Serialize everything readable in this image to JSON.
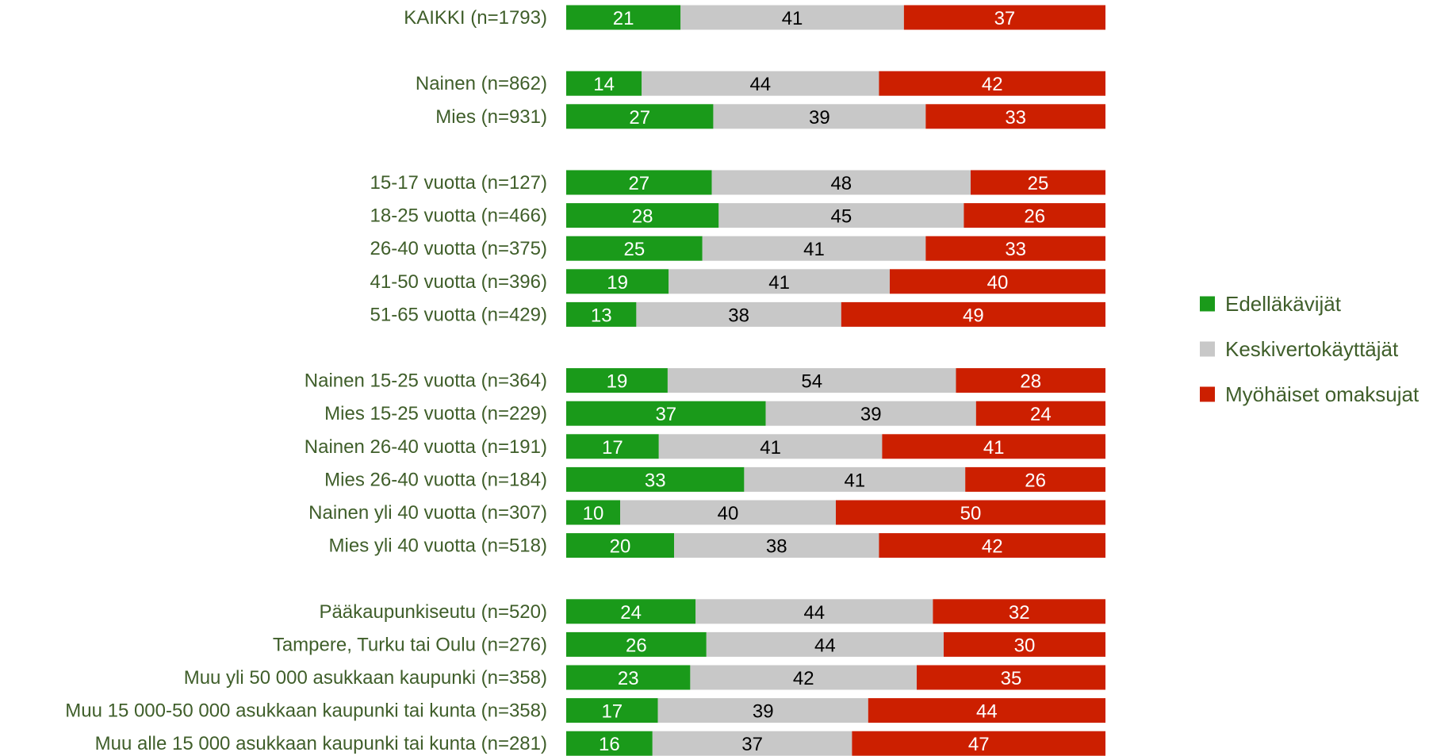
{
  "colors": {
    "edellakavijat": "#1a9a1a",
    "keskivertokayttajat": "#c8c8c8",
    "myohaiset": "#cc1f00",
    "label_text": "#3f5e2a"
  },
  "chart_data": {
    "type": "bar",
    "orientation": "horizontal",
    "stacked": true,
    "normalized_percent": true,
    "title": "",
    "xlabel": "",
    "ylabel": "",
    "xlim": [
      0,
      100
    ],
    "grid": false,
    "legend_position": "right",
    "categories": [
      "KAIKKI (n=1793)",
      "Nainen (n=862)",
      "Mies (n=931)",
      "15-17 vuotta (n=127)",
      "18-25 vuotta (n=466)",
      "26-40 vuotta (n=375)",
      "41-50 vuotta (n=396)",
      "51-65 vuotta (n=429)",
      "Nainen 15-25 vuotta (n=364)",
      "Mies 15-25 vuotta (n=229)",
      "Nainen 26-40 vuotta (n=191)",
      "Mies 26-40 vuotta (n=184)",
      "Nainen yli 40 vuotta (n=307)",
      "Mies yli 40 vuotta (n=518)",
      "Pääkaupunkiseutu (n=520)",
      "Tampere, Turku tai Oulu (n=276)",
      "Muu yli 50 000 asukkaan kaupunki (n=358)",
      "Muu 15 000-50 000 asukkaan kaupunki tai kunta (n=358)",
      "Muu alle 15 000 asukkaan kaupunki tai kunta (n=281)"
    ],
    "group_breaks_after": [
      0,
      2,
      7,
      13
    ],
    "series": [
      {
        "name": "Edelläkävijät",
        "color": "#1a9a1a",
        "values": [
          21,
          14,
          27,
          27,
          28,
          25,
          19,
          13,
          19,
          37,
          17,
          33,
          10,
          20,
          24,
          26,
          23,
          17,
          16
        ]
      },
      {
        "name": "Keskivertokäyttäjät",
        "color": "#c8c8c8",
        "values": [
          41,
          44,
          39,
          48,
          45,
          41,
          41,
          38,
          54,
          39,
          41,
          41,
          40,
          38,
          44,
          44,
          42,
          39,
          37
        ]
      },
      {
        "name": "Myöhäiset omaksujat",
        "color": "#cc1f00",
        "values": [
          37,
          42,
          33,
          25,
          26,
          33,
          40,
          49,
          28,
          24,
          41,
          26,
          50,
          42,
          32,
          30,
          35,
          44,
          47
        ]
      }
    ]
  }
}
